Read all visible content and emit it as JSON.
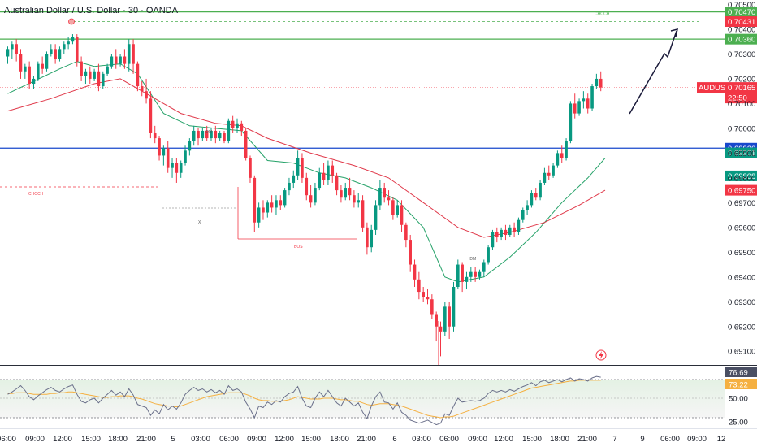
{
  "header": {
    "title": "Australian Dollar / U.S. Dollar · 30 · OANDA"
  },
  "chart_data": {
    "type": "candlestick",
    "symbol": "AUDUSD",
    "interval": "30",
    "broker": "OANDA",
    "price_axis": {
      "ylim": [
        0.69045,
        0.70518
      ],
      "ticks": [
        "0.70500",
        "0.70400",
        "0.70300",
        "0.70200",
        "0.70100",
        "0.70000",
        "0.69900",
        "0.69800",
        "0.69700",
        "0.69600",
        "0.69500",
        "0.69400",
        "0.69300",
        "0.69200",
        "0.69100"
      ]
    },
    "time_axis": {
      "ticks": [
        "06:00",
        "09:00",
        "12:00",
        "15:00",
        "18:00",
        "21:00",
        "5",
        "03:00",
        "06:00",
        "09:00",
        "12:00",
        "15:00",
        "18:00",
        "21:00",
        "6",
        "03:00",
        "06:00",
        "09:00",
        "12:00",
        "15:00",
        "18:00",
        "21:00",
        "7",
        "9",
        "06:00",
        "09:00",
        "12"
      ]
    },
    "levels": [
      {
        "value": 0.7047,
        "label": "0.70470",
        "color": "#4caf50",
        "style": "solid"
      },
      {
        "value": 0.70431,
        "label": "0.70431",
        "color": "#f23645",
        "style": "badge"
      },
      {
        "value": 0.7036,
        "label": "0.70360",
        "color": "#4caf50",
        "style": "solid"
      },
      {
        "value": 0.6992,
        "label": "0.69920",
        "color": "#1848cc",
        "style": "solid"
      },
      {
        "value": 0.69901,
        "label": "0.69901",
        "color": "#089981",
        "style": "badge"
      },
      {
        "value": 0.69808,
        "label": "0.69808",
        "color": "#089981",
        "style": "badge"
      },
      {
        "value": 0.6975,
        "label": "0.69750",
        "color": "#f23645",
        "style": "badge"
      }
    ],
    "current_price": {
      "symbol": "AUDUSD",
      "value": "0.70165",
      "countdown": "22:50",
      "color": "#f23645"
    },
    "candles": [
      [
        0.7029,
        0.7033,
        0.7032,
        0.7026
      ],
      [
        0.7032,
        0.7035,
        0.7034,
        0.7028
      ],
      [
        0.7034,
        0.7036,
        0.703,
        0.7027
      ],
      [
        0.703,
        0.7032,
        0.7023,
        0.702
      ],
      [
        0.7023,
        0.7026,
        0.7025,
        0.702
      ],
      [
        0.7025,
        0.7027,
        0.7018,
        0.7016
      ],
      [
        0.7018,
        0.7021,
        0.702,
        0.7016
      ],
      [
        0.702,
        0.7027,
        0.7026,
        0.7019
      ],
      [
        0.7026,
        0.7029,
        0.7024,
        0.7022
      ],
      [
        0.7024,
        0.7031,
        0.703,
        0.7023
      ],
      [
        0.703,
        0.7034,
        0.7032,
        0.7029
      ],
      [
        0.7032,
        0.7034,
        0.7028,
        0.7026
      ],
      [
        0.7028,
        0.7033,
        0.7032,
        0.7027
      ],
      [
        0.7032,
        0.7035,
        0.7034,
        0.703
      ],
      [
        0.7034,
        0.7037,
        0.7035,
        0.7032
      ],
      [
        0.7035,
        0.7038,
        0.7037,
        0.7034
      ],
      [
        0.7037,
        0.7038,
        0.7027,
        0.7025
      ],
      [
        0.7027,
        0.7029,
        0.7021,
        0.7019
      ],
      [
        0.7021,
        0.7024,
        0.7023,
        0.7018
      ],
      [
        0.7023,
        0.7025,
        0.702,
        0.7018
      ],
      [
        0.702,
        0.7024,
        0.7023,
        0.7019
      ],
      [
        0.7023,
        0.7026,
        0.7017,
        0.7015
      ],
      [
        0.7017,
        0.7023,
        0.7022,
        0.7016
      ],
      [
        0.7022,
        0.7026,
        0.7025,
        0.7021
      ],
      [
        0.7025,
        0.703,
        0.7029,
        0.7024
      ],
      [
        0.7029,
        0.7032,
        0.7026,
        0.7024
      ],
      [
        0.7026,
        0.703,
        0.7029,
        0.7025
      ],
      [
        0.7029,
        0.7032,
        0.7026,
        0.7024
      ],
      [
        0.7026,
        0.7036,
        0.7034,
        0.7023
      ],
      [
        0.7034,
        0.7036,
        0.7026,
        0.7022
      ],
      [
        0.7026,
        0.7027,
        0.7017,
        0.7015
      ],
      [
        0.7017,
        0.7019,
        0.7015,
        0.7013
      ],
      [
        0.7015,
        0.702,
        0.7012,
        0.701
      ],
      [
        0.7012,
        0.7015,
        0.6998,
        0.6996
      ],
      [
        0.6998,
        0.7001,
        0.6996,
        0.6994
      ],
      [
        0.6996,
        0.6997,
        0.6989,
        0.6987
      ],
      [
        0.6989,
        0.6993,
        0.6992,
        0.6985
      ],
      [
        0.6992,
        0.6995,
        0.6984,
        0.6982
      ],
      [
        0.6984,
        0.6988,
        0.6986,
        0.698
      ],
      [
        0.6986,
        0.6988,
        0.6982,
        0.6978
      ],
      [
        0.6982,
        0.6987,
        0.6986,
        0.698
      ],
      [
        0.6986,
        0.6993,
        0.6991,
        0.6985
      ],
      [
        0.6991,
        0.6996,
        0.6995,
        0.6989
      ],
      [
        0.6995,
        0.7001,
        0.6999,
        0.6993
      ],
      [
        0.6999,
        0.7,
        0.6996,
        0.6993
      ],
      [
        0.6996,
        0.7,
        0.6999,
        0.6995
      ],
      [
        0.6999,
        0.7001,
        0.6996,
        0.6995
      ],
      [
        0.6996,
        0.7,
        0.6999,
        0.6995
      ],
      [
        0.6999,
        0.7001,
        0.6996,
        0.6994
      ],
      [
        0.6996,
        0.6999,
        0.6998,
        0.6995
      ],
      [
        0.6998,
        0.6999,
        0.6995,
        0.6994
      ],
      [
        0.6995,
        0.7004,
        0.7003,
        0.6994
      ],
      [
        0.7003,
        0.7005,
        0.7,
        0.6998
      ],
      [
        0.7,
        0.7004,
        0.7002,
        0.6998
      ],
      [
        0.7002,
        0.7003,
        0.6999,
        0.6997
      ],
      [
        0.6999,
        0.7,
        0.6988,
        0.6987
      ],
      [
        0.6988,
        0.6989,
        0.698,
        0.6978
      ],
      [
        0.698,
        0.6981,
        0.6962,
        0.6958
      ],
      [
        0.6962,
        0.697,
        0.6968,
        0.696
      ],
      [
        0.6968,
        0.6971,
        0.6966,
        0.6963
      ],
      [
        0.6966,
        0.6971,
        0.697,
        0.6964
      ],
      [
        0.697,
        0.6973,
        0.6968,
        0.6966
      ],
      [
        0.6968,
        0.6973,
        0.6971,
        0.6965
      ],
      [
        0.6971,
        0.6973,
        0.6969,
        0.6967
      ],
      [
        0.6969,
        0.6976,
        0.6975,
        0.6968
      ],
      [
        0.6975,
        0.698,
        0.6978,
        0.6973
      ],
      [
        0.6978,
        0.6983,
        0.6981,
        0.6976
      ],
      [
        0.6981,
        0.6991,
        0.6988,
        0.6979
      ],
      [
        0.6988,
        0.699,
        0.698,
        0.6978
      ],
      [
        0.698,
        0.6982,
        0.6973,
        0.6971
      ],
      [
        0.6973,
        0.6977,
        0.697,
        0.6968
      ],
      [
        0.697,
        0.6978,
        0.6976,
        0.6969
      ],
      [
        0.6976,
        0.6984,
        0.6982,
        0.6975
      ],
      [
        0.6982,
        0.6986,
        0.6979,
        0.6977
      ],
      [
        0.6979,
        0.6987,
        0.6985,
        0.6977
      ],
      [
        0.6985,
        0.6987,
        0.6981,
        0.6978
      ],
      [
        0.6981,
        0.6982,
        0.6975,
        0.6973
      ],
      [
        0.6975,
        0.6977,
        0.6972,
        0.697
      ],
      [
        0.6972,
        0.6978,
        0.6976,
        0.6971
      ],
      [
        0.6976,
        0.698,
        0.6973,
        0.6971
      ],
      [
        0.6973,
        0.6975,
        0.697,
        0.6968
      ],
      [
        0.697,
        0.6974,
        0.6971,
        0.6968
      ],
      [
        0.6971,
        0.6973,
        0.696,
        0.6958
      ],
      [
        0.696,
        0.6962,
        0.6952,
        0.6949
      ],
      [
        0.6952,
        0.6961,
        0.6959,
        0.695
      ],
      [
        0.6959,
        0.6971,
        0.6969,
        0.6957
      ],
      [
        0.6969,
        0.6979,
        0.6976,
        0.6967
      ],
      [
        0.6976,
        0.6978,
        0.6972,
        0.697
      ],
      [
        0.6972,
        0.6975,
        0.6971,
        0.6969
      ],
      [
        0.6971,
        0.6972,
        0.6965,
        0.6963
      ],
      [
        0.6965,
        0.6971,
        0.6969,
        0.6964
      ],
      [
        0.6969,
        0.6971,
        0.6961,
        0.6958
      ],
      [
        0.6961,
        0.6962,
        0.6955,
        0.6952
      ],
      [
        0.6955,
        0.6957,
        0.6945,
        0.6942
      ],
      [
        0.6945,
        0.6947,
        0.6939,
        0.6936
      ],
      [
        0.6939,
        0.6942,
        0.6934,
        0.6931
      ],
      [
        0.6934,
        0.6936,
        0.6932,
        0.693
      ],
      [
        0.6932,
        0.6935,
        0.6931,
        0.6929
      ],
      [
        0.6931,
        0.6933,
        0.6925,
        0.6923
      ],
      [
        0.6925,
        0.6926,
        0.692,
        0.6914
      ],
      [
        0.692,
        0.6922,
        0.6918,
        0.6908
      ],
      [
        0.6918,
        0.693,
        0.6928,
        0.6916
      ],
      [
        0.6928,
        0.693,
        0.692,
        0.6915
      ],
      [
        0.692,
        0.6938,
        0.6936,
        0.6918
      ],
      [
        0.6936,
        0.6947,
        0.6945,
        0.6935
      ],
      [
        0.6945,
        0.6946,
        0.6938,
        0.6934
      ],
      [
        0.6938,
        0.6942,
        0.694,
        0.6935
      ],
      [
        0.694,
        0.6944,
        0.6942,
        0.6938
      ],
      [
        0.6942,
        0.6944,
        0.694,
        0.6938
      ],
      [
        0.694,
        0.6943,
        0.6942,
        0.6939
      ],
      [
        0.6942,
        0.6947,
        0.6946,
        0.694
      ],
      [
        0.6946,
        0.6953,
        0.6952,
        0.6945
      ],
      [
        0.6952,
        0.6959,
        0.6958,
        0.6951
      ],
      [
        0.6958,
        0.696,
        0.6956,
        0.6954
      ],
      [
        0.6956,
        0.696,
        0.6959,
        0.6955
      ],
      [
        0.6959,
        0.6961,
        0.6957,
        0.6955
      ],
      [
        0.6957,
        0.6961,
        0.696,
        0.6956
      ],
      [
        0.696,
        0.6962,
        0.6958,
        0.6956
      ],
      [
        0.6958,
        0.6964,
        0.6963,
        0.6957
      ],
      [
        0.6963,
        0.6968,
        0.6967,
        0.6962
      ],
      [
        0.6967,
        0.6971,
        0.6969,
        0.6965
      ],
      [
        0.6969,
        0.6975,
        0.6974,
        0.6968
      ],
      [
        0.6974,
        0.6976,
        0.6972,
        0.6971
      ],
      [
        0.6972,
        0.6979,
        0.6978,
        0.6971
      ],
      [
        0.6978,
        0.6984,
        0.6982,
        0.6977
      ],
      [
        0.6982,
        0.6985,
        0.6981,
        0.6979
      ],
      [
        0.6981,
        0.6986,
        0.6985,
        0.698
      ],
      [
        0.6985,
        0.6991,
        0.699,
        0.6984
      ],
      [
        0.699,
        0.6993,
        0.6988,
        0.6986
      ],
      [
        0.6988,
        0.6996,
        0.6995,
        0.6987
      ],
      [
        0.6995,
        0.7011,
        0.701,
        0.6994
      ],
      [
        0.701,
        0.7014,
        0.7006,
        0.7004
      ],
      [
        0.7006,
        0.7012,
        0.7011,
        0.7005
      ],
      [
        0.7011,
        0.7015,
        0.7012,
        0.7008
      ],
      [
        0.7012,
        0.7014,
        0.7008,
        0.7006
      ],
      [
        0.7008,
        0.7018,
        0.7017,
        0.7007
      ],
      [
        0.7017,
        0.7022,
        0.702,
        0.7016
      ],
      [
        0.702,
        0.7023,
        0.70165,
        0.7015
      ]
    ],
    "ema_fast": [
      [
        0,
        0.7014
      ],
      [
        6,
        0.7019
      ],
      [
        12,
        0.7024
      ],
      [
        16,
        0.7027
      ],
      [
        20,
        0.7025
      ],
      [
        26,
        0.7026
      ],
      [
        30,
        0.7022
      ],
      [
        36,
        0.7006
      ],
      [
        42,
        0.7001
      ],
      [
        48,
        0.7
      ],
      [
        54,
        0.6999
      ],
      [
        60,
        0.6987
      ],
      [
        66,
        0.6986
      ],
      [
        72,
        0.6982
      ],
      [
        78,
        0.698
      ],
      [
        84,
        0.6976
      ],
      [
        90,
        0.6971
      ],
      [
        96,
        0.696
      ],
      [
        101,
        0.694
      ],
      [
        104,
        0.6938
      ],
      [
        110,
        0.694
      ],
      [
        116,
        0.6948
      ],
      [
        122,
        0.6958
      ],
      [
        128,
        0.697
      ],
      [
        134,
        0.698
      ],
      [
        138,
        0.6988
      ]
    ],
    "ema_slow": [
      [
        0,
        0.7007
      ],
      [
        10,
        0.7012
      ],
      [
        20,
        0.7018
      ],
      [
        26,
        0.702
      ],
      [
        32,
        0.7014
      ],
      [
        40,
        0.7006
      ],
      [
        48,
        0.7002
      ],
      [
        54,
        0.7001
      ],
      [
        60,
        0.6996
      ],
      [
        70,
        0.699
      ],
      [
        80,
        0.6985
      ],
      [
        88,
        0.698
      ],
      [
        96,
        0.697
      ],
      [
        104,
        0.696
      ],
      [
        110,
        0.6956
      ],
      [
        116,
        0.6958
      ],
      [
        124,
        0.6962
      ],
      [
        132,
        0.6969
      ],
      [
        138,
        0.6975
      ]
    ],
    "annotations": {
      "choch_top": "CHOCH",
      "choch_left": "CHOCH",
      "idm_1": "IDM",
      "idm_2": "IDM",
      "bos": "BOS",
      "x_mark": "X"
    },
    "projection": [
      [
        2,
        0.701
      ],
      [
        5,
        0.7037
      ],
      [
        6,
        0.7046
      ]
    ],
    "rsi": {
      "levels": [
        "76.69",
        "73.22",
        "50.00",
        "25.00"
      ],
      "value_colors": [
        "#131722",
        "#f5b041"
      ],
      "rsi_line": [
        55,
        58,
        62,
        66,
        60,
        52,
        48,
        53,
        57,
        61,
        64,
        60,
        58,
        62,
        65,
        67,
        55,
        46,
        44,
        48,
        50,
        44,
        50,
        55,
        60,
        54,
        58,
        52,
        62,
        54,
        42,
        40,
        38,
        28,
        35,
        30,
        42,
        35,
        40,
        36,
        44,
        55,
        60,
        64,
        60,
        62,
        58,
        61,
        57,
        60,
        55,
        66,
        60,
        62,
        58,
        45,
        36,
        25,
        40,
        38,
        45,
        42,
        47,
        45,
        52,
        56,
        58,
        65,
        50,
        40,
        38,
        50,
        58,
        52,
        60,
        52,
        44,
        40,
        50,
        45,
        40,
        44,
        32,
        24,
        40,
        52,
        58,
        45,
        44,
        36,
        44,
        32,
        28,
        22,
        20,
        18,
        20,
        22,
        19,
        16,
        18,
        30,
        28,
        40,
        50,
        45,
        46,
        47,
        46,
        47,
        50,
        56,
        60,
        58,
        60,
        58,
        61,
        59,
        62,
        65,
        67,
        70,
        66,
        71,
        73,
        70,
        72,
        74,
        71,
        74,
        76,
        72,
        75,
        74,
        72,
        76,
        78,
        77
      ],
      "rsi_ma": [
        56,
        56,
        57,
        57,
        57,
        56,
        55,
        55,
        55,
        55,
        56,
        56,
        57,
        57,
        58,
        58,
        57,
        56,
        55,
        54,
        53,
        52,
        51,
        51,
        52,
        52,
        53,
        53,
        53,
        52,
        50,
        49,
        47,
        45,
        43,
        42,
        41,
        40,
        40,
        39,
        40,
        42,
        44,
        46,
        48,
        50,
        52,
        53,
        54,
        55,
        56,
        57,
        57,
        57,
        57,
        55,
        53,
        50,
        48,
        47,
        47,
        46,
        46,
        46,
        47,
        48,
        50,
        52,
        51,
        50,
        49,
        49,
        49,
        50,
        50,
        50,
        49,
        48,
        48,
        47,
        46,
        46,
        44,
        42,
        41,
        42,
        43,
        43,
        43,
        42,
        41,
        40,
        38,
        36,
        34,
        32,
        30,
        28,
        27,
        26,
        25,
        26,
        26,
        27,
        29,
        31,
        33,
        35,
        37,
        39,
        41,
        43,
        45,
        47,
        49,
        51,
        53,
        55,
        57,
        59,
        61,
        63,
        64,
        65,
        66,
        67,
        68,
        69,
        70,
        71,
        72,
        72,
        73,
        73,
        73,
        73,
        73,
        73
      ]
    }
  }
}
